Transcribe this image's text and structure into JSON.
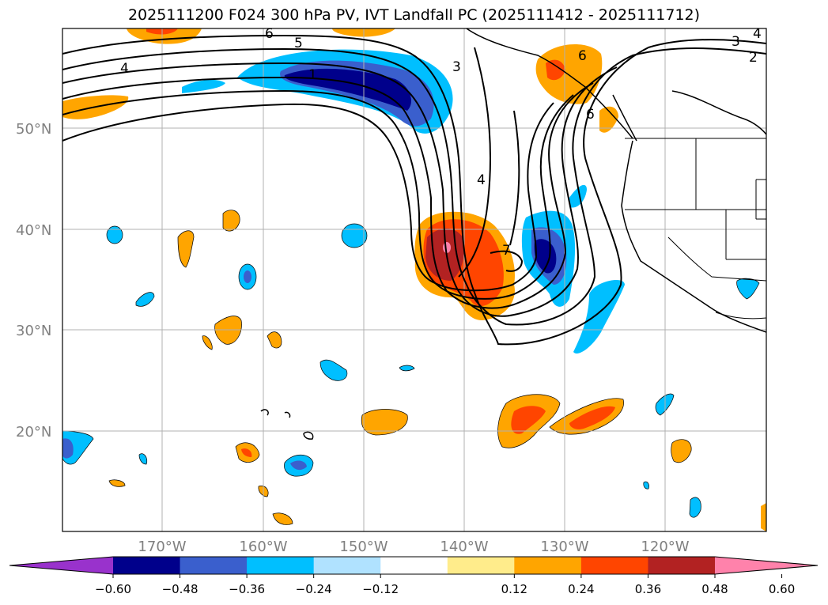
{
  "title": "2025111200 F024 300 hPa PV, IVT Landfall PC (2025111412 - 2025111712)",
  "lat_labels": [
    "50°N",
    "40°N",
    "30°N",
    "20°N"
  ],
  "lon_labels": [
    "170°W",
    "160°W",
    "150°W",
    "140°W",
    "130°W",
    "120°W"
  ],
  "colorbar": {
    "ticks": [
      "−0.60",
      "−0.48",
      "−0.36",
      "−0.24",
      "−0.12",
      "0.12",
      "0.24",
      "0.36",
      "0.48",
      "0.60"
    ],
    "colors": [
      "#9932cc",
      "#00008b",
      "#3a5fcd",
      "#00bfff",
      "#b0e2ff",
      "#ffffff",
      "#ffec8b",
      "#ffa500",
      "#ff4500",
      "#b22222",
      "#ff82ab"
    ]
  },
  "contour_labels": [
    "4",
    "3",
    "2",
    "6",
    "5",
    "1",
    "4",
    "3",
    "6",
    "4",
    "7",
    "6"
  ],
  "colors": {
    "neg_strong": "#00008b",
    "neg_mid": "#3a5fcd",
    "neg_light": "#00bfff",
    "pos_light": "#ffa500",
    "pos_mid": "#ff4500",
    "pos_strong": "#b22222",
    "pos_max": "#ff82ab"
  }
}
